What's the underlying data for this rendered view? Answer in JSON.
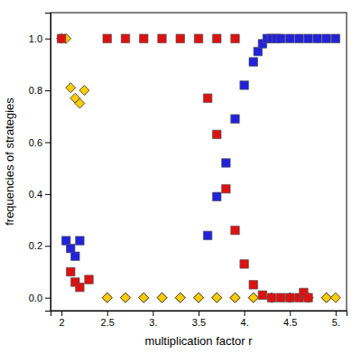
{
  "chart_data": {
    "type": "scatter",
    "xlabel": "multiplication factor r",
    "ylabel": "frequencies of strategies",
    "xlim": [
      1.88,
      5.12
    ],
    "ylim": [
      -0.05,
      1.1
    ],
    "xticks": [
      2,
      2.5,
      {
        "value": 3.0,
        "label": "3."
      },
      3.5,
      {
        "value": 4.0,
        "label": "4."
      },
      4.5,
      {
        "value": 5.0,
        "label": "5."
      }
    ],
    "yticks": [
      {
        "value": 0.0,
        "label": "0.0"
      },
      0.2,
      0.4,
      0.6,
      0.8,
      {
        "value": 1.0,
        "label": "1.0"
      }
    ],
    "grid": false,
    "series": [
      {
        "color": "#ffcc00",
        "marker": "diamond",
        "x": [
          2.0,
          2.05,
          2.1,
          2.15,
          2.2,
          2.25,
          2.5,
          2.7,
          2.9,
          3.1,
          3.3,
          3.5,
          3.7,
          3.9,
          4.1,
          4.3,
          4.5,
          4.7,
          4.9,
          2.5,
          2.7,
          2.9,
          3.1,
          3.3,
          3.5,
          3.7,
          3.9,
          4.1,
          4.3,
          4.5,
          4.7,
          4.9,
          5.0
        ],
        "values": [
          1.0,
          1.0,
          0.81,
          0.77,
          0.75,
          0.8,
          0.0,
          0.0,
          0.0,
          0.0,
          0.0,
          0.0,
          0.0,
          0.0,
          0.0,
          0.0,
          0.0,
          0.0,
          0.0,
          0.0,
          0.0,
          0.0,
          0.0,
          0.0,
          0.0,
          0.0,
          0.0,
          0.0,
          0.0,
          0.0,
          0.0,
          0.0,
          0.0
        ]
      },
      {
        "color": "#dd1111",
        "marker": "square",
        "x": [
          2.0,
          2.1,
          2.15,
          2.2,
          2.3,
          2.5,
          2.7,
          2.9,
          3.1,
          3.3,
          3.5,
          3.7,
          3.9,
          3.6,
          3.7,
          3.8,
          3.9,
          4.0,
          4.1,
          4.2,
          4.3,
          4.4,
          4.5,
          4.6,
          4.65,
          4.7
        ],
        "values": [
          1.0,
          0.1,
          0.06,
          0.04,
          0.07,
          1.0,
          1.0,
          1.0,
          1.0,
          1.0,
          1.0,
          1.0,
          1.0,
          0.77,
          0.63,
          0.42,
          0.26,
          0.13,
          0.05,
          0.01,
          0.0,
          0.0,
          0.0,
          0.0,
          0.02,
          0.0
        ]
      },
      {
        "color": "#2222dd",
        "marker": "square",
        "x": [
          2.05,
          2.1,
          2.15,
          2.2,
          3.6,
          3.7,
          3.8,
          3.9,
          4.0,
          4.1,
          4.15,
          4.2,
          4.25,
          4.3,
          4.35,
          4.4,
          4.5,
          4.6,
          4.7,
          4.8,
          4.9,
          5.0
        ],
        "values": [
          0.22,
          0.19,
          0.16,
          0.22,
          0.24,
          0.39,
          0.52,
          0.69,
          0.82,
          0.91,
          0.95,
          0.98,
          1.0,
          1.0,
          1.0,
          1.0,
          1.0,
          1.0,
          1.0,
          1.0,
          1.0,
          1.0
        ]
      }
    ]
  }
}
